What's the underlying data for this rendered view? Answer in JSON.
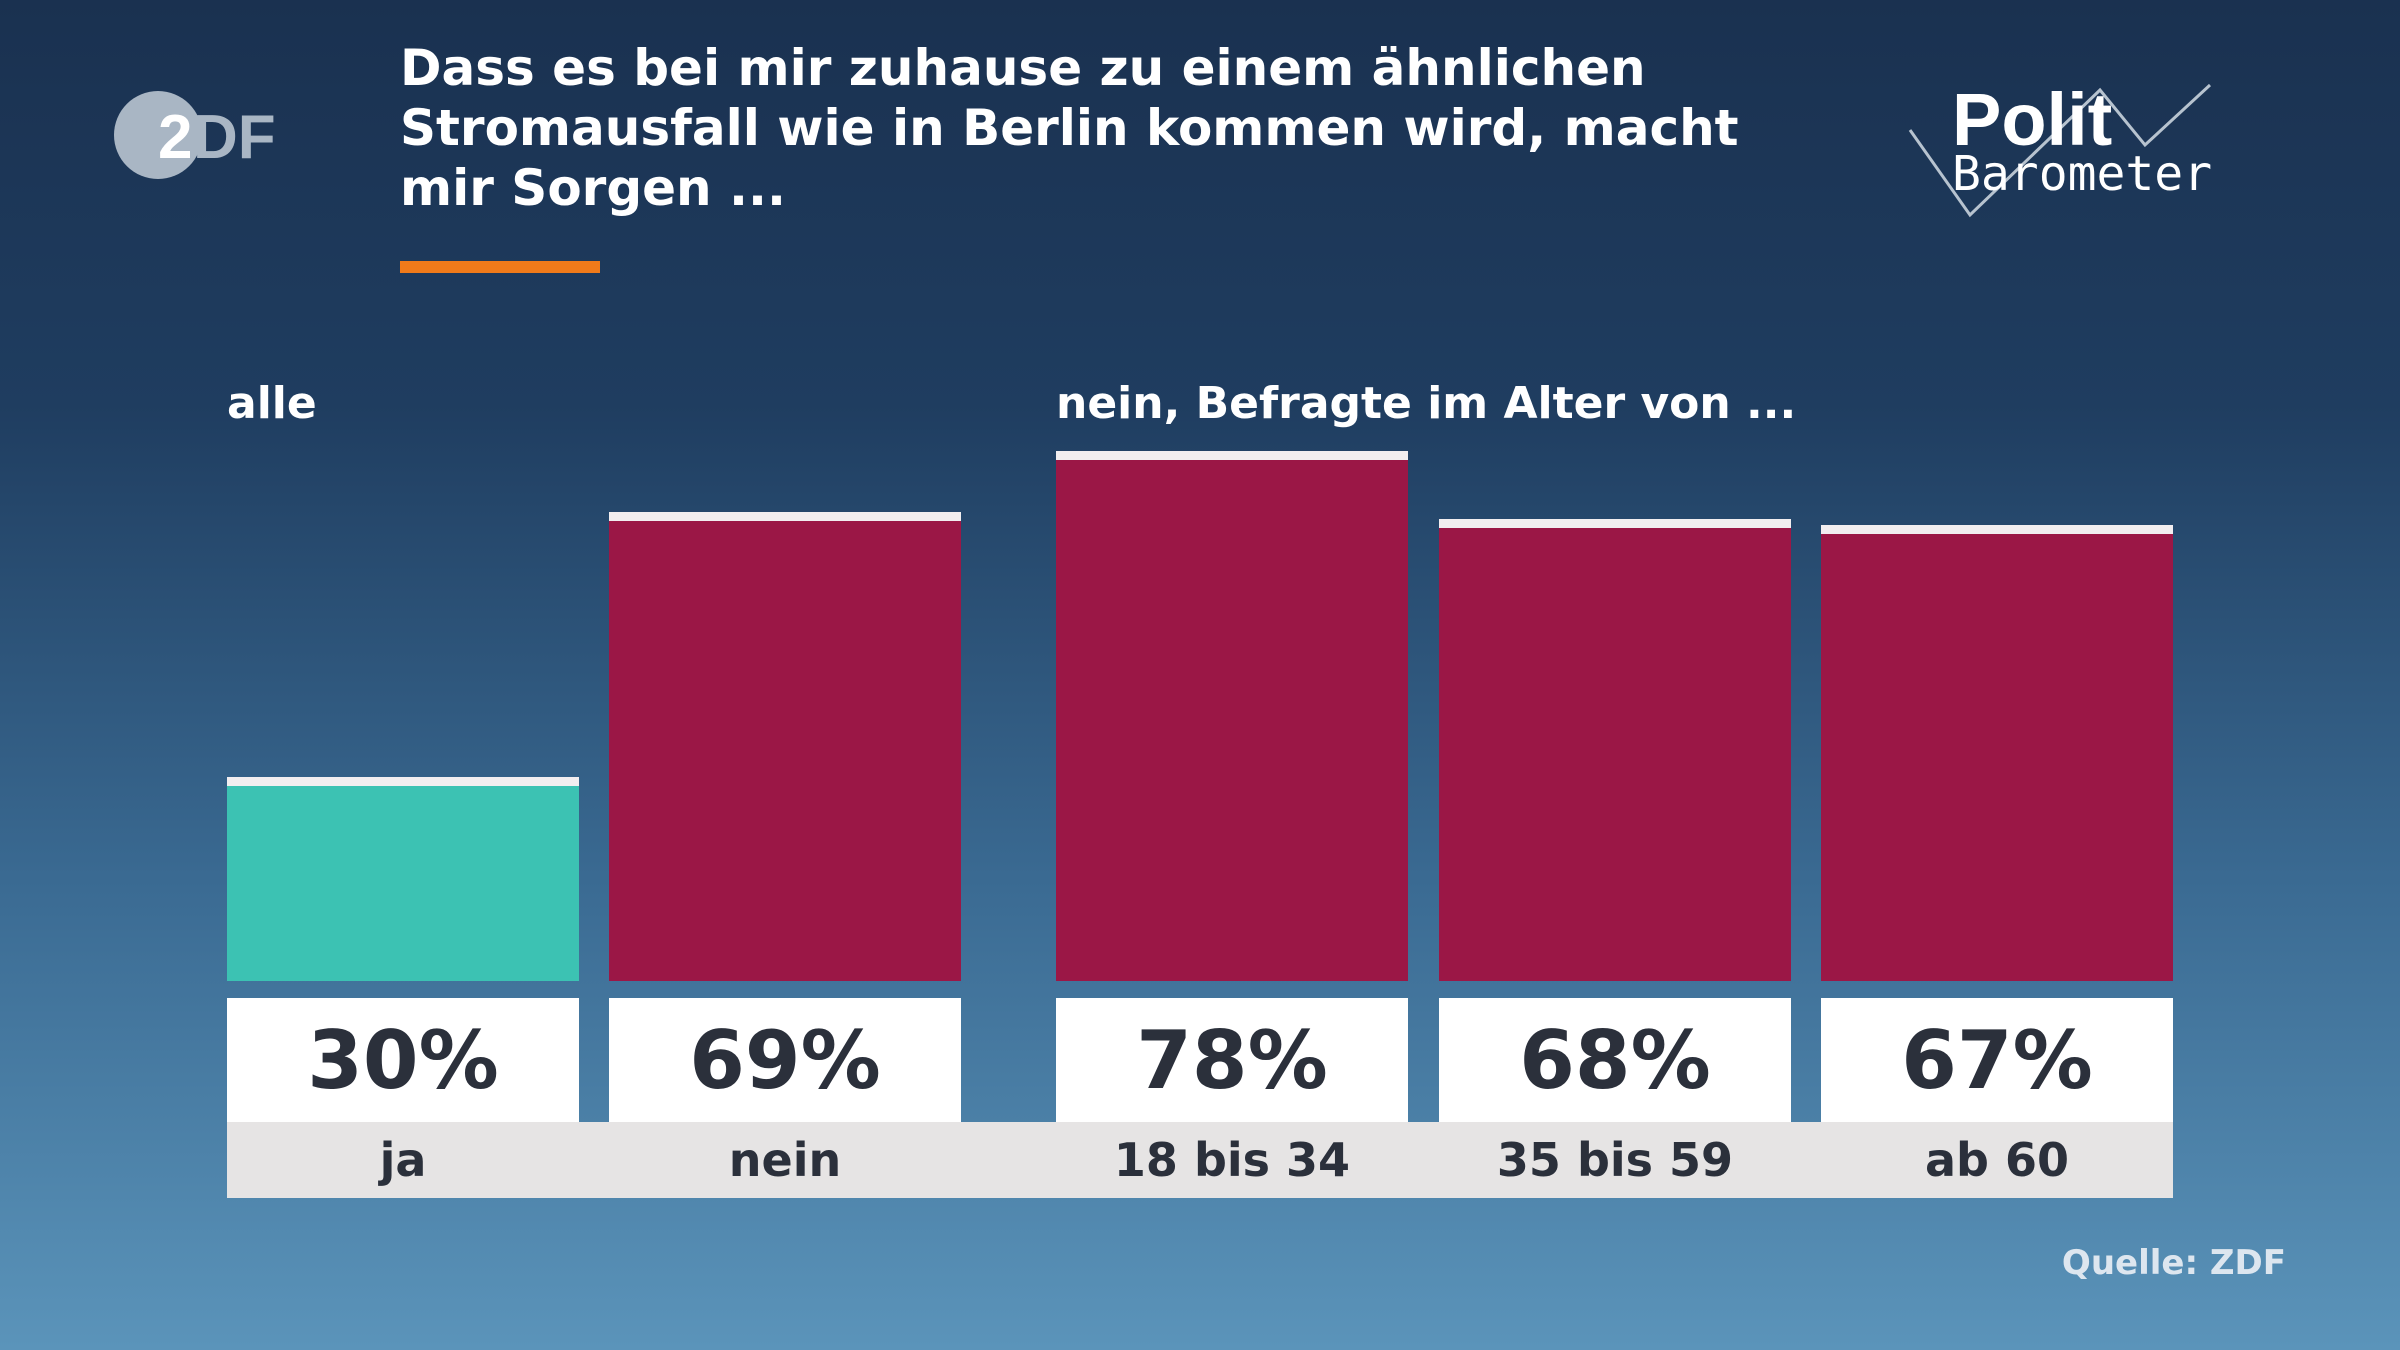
{
  "title": "Dass es bei mir zuhause zu einem ähnlichen Stromausfall wie in Berlin kommen wird, macht mir Sorgen ...",
  "logos": {
    "left": "ZDF",
    "right": "Polit Barometer"
  },
  "colors": {
    "ja": "#3cc2b3",
    "nein": "#9b1746",
    "accent": "#f07a1a"
  },
  "source": "Quelle: ZDF",
  "chart_data": {
    "type": "bar",
    "title": "Dass es bei mir zuhause zu einem ähnlichen Stromausfall wie in Berlin kommen wird, macht mir Sorgen ...",
    "groups": [
      {
        "label": "alle",
        "categories": [
          "ja",
          "nein"
        ],
        "values": [
          30,
          69
        ],
        "value_labels": [
          "30%",
          "69%"
        ]
      },
      {
        "label": "nein, Befragte im Alter von ...",
        "categories": [
          "18 bis 34",
          "35 bis 59",
          "ab 60"
        ],
        "values": [
          78,
          68,
          67
        ],
        "value_labels": [
          "78%",
          "68%",
          "67%"
        ]
      }
    ],
    "ylim": [
      0,
      100
    ],
    "grid": false
  }
}
